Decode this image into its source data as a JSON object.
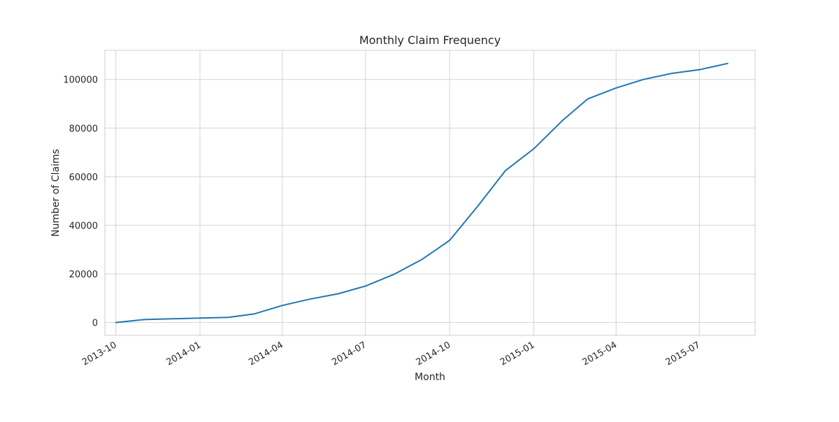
{
  "chart_data": {
    "type": "line",
    "title": "Monthly Claim Frequency",
    "xlabel": "Month",
    "ylabel": "Number of Claims",
    "grid": true,
    "legend": "none",
    "line_color": "#1f77b4",
    "grid_color": "#d4d4d4",
    "border_color": "#cccccc",
    "x_range": [
      "2013-09-19",
      "2015-08-31"
    ],
    "ylim": [
      -5300,
      112000
    ],
    "x_ticks": [
      "2013-10",
      "2014-01",
      "2014-04",
      "2014-07",
      "2014-10",
      "2015-01",
      "2015-04",
      "2015-07"
    ],
    "y_ticks": [
      0,
      20000,
      40000,
      60000,
      80000,
      100000
    ],
    "series": [
      {
        "x": [
          "2013-10-01",
          "2013-11-01",
          "2013-12-01",
          "2014-01-01",
          "2014-02-01",
          "2014-03-01",
          "2014-04-01",
          "2014-05-01",
          "2014-06-01",
          "2014-07-01",
          "2014-08-01",
          "2014-09-01",
          "2014-10-01",
          "2014-11-01",
          "2014-12-01",
          "2015-01-01",
          "2015-02-01",
          "2015-03-01",
          "2015-04-01",
          "2015-05-01",
          "2015-06-01",
          "2015-07-01",
          "2015-08-01"
        ],
        "values": [
          0,
          1200,
          1500,
          1800,
          2100,
          3500,
          7000,
          9600,
          11800,
          15000,
          19800,
          26000,
          33800,
          48000,
          62500,
          71500,
          83000,
          92000,
          96500,
          100000,
          102500,
          104000,
          106600
        ]
      }
    ]
  }
}
